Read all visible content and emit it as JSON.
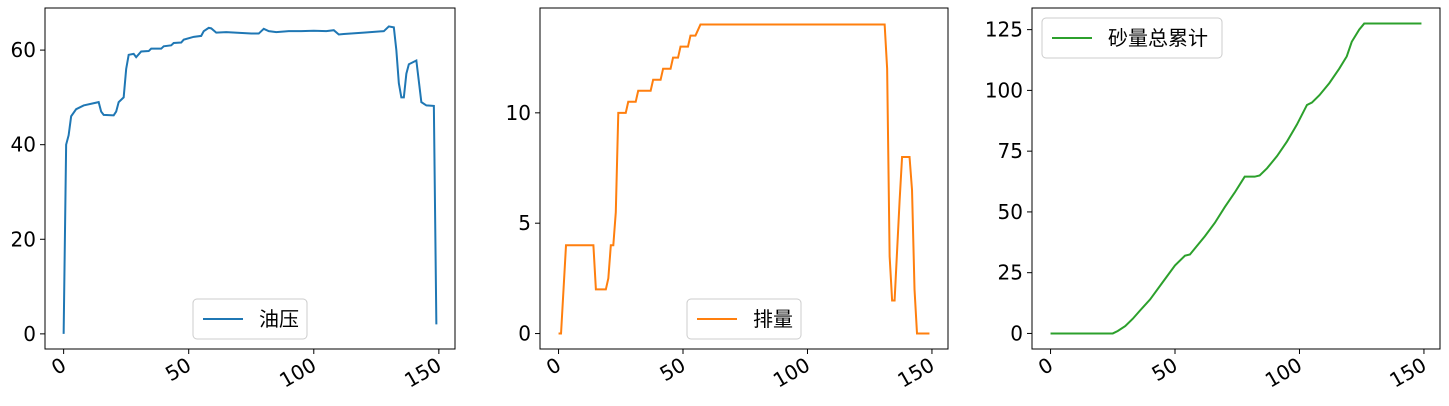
{
  "chart_data": [
    {
      "type": "line",
      "x": [
        0,
        1,
        2,
        3,
        5,
        8,
        14,
        15,
        16,
        20,
        21,
        22,
        24,
        25,
        26,
        28,
        29,
        31,
        34,
        35,
        39,
        40,
        43,
        44,
        47,
        48,
        52,
        55,
        56,
        58,
        59,
        61,
        65,
        75,
        78,
        80,
        82,
        85,
        90,
        95,
        100,
        105,
        108,
        110,
        112,
        120,
        128,
        130,
        132,
        133,
        134,
        135,
        136,
        137,
        138,
        141,
        143,
        145,
        148,
        149
      ],
      "series": [
        {
          "name": "油压",
          "color": "#1f77b4",
          "values": [
            0,
            40,
            42,
            46,
            47.5,
            48.3,
            49,
            47,
            46.3,
            46.2,
            47,
            49,
            50,
            56,
            59,
            59.2,
            58.5,
            59.7,
            59.8,
            60.3,
            60.3,
            60.8,
            61,
            61.5,
            61.6,
            62.2,
            62.8,
            63,
            64,
            64.7,
            64.6,
            63.7,
            63.8,
            63.5,
            63.5,
            64.5,
            64,
            63.8,
            64,
            64,
            64.1,
            64,
            64.2,
            63.3,
            63.4,
            63.7,
            64,
            65,
            64.8,
            60,
            53,
            50,
            50,
            55,
            57,
            57.8,
            49,
            48.3,
            48.2,
            2
          ]
        }
      ],
      "xlim": [
        -7.45,
        156.45
      ],
      "ylim": [
        -3.2,
        68.9
      ],
      "xticks": [
        0,
        50,
        100,
        150
      ],
      "yticks": [
        0,
        20,
        40,
        60
      ],
      "legend": "lower center"
    },
    {
      "type": "line",
      "x": [
        0,
        1,
        3,
        14,
        15,
        19,
        20,
        21,
        22,
        23,
        24,
        27,
        28,
        31,
        32,
        37,
        38,
        41,
        42,
        45,
        46,
        48,
        49,
        52,
        53,
        55,
        57,
        131,
        132,
        133,
        134,
        135,
        137,
        138,
        141,
        142,
        143,
        144,
        149
      ],
      "series": [
        {
          "name": "排量",
          "color": "#ff7f0e",
          "values": [
            0,
            0,
            4,
            4,
            2,
            2,
            2.5,
            4,
            4,
            5.5,
            10,
            10,
            10.5,
            10.5,
            11,
            11,
            11.5,
            11.5,
            12,
            12,
            12.5,
            12.5,
            13,
            13,
            13.5,
            13.5,
            14,
            14,
            12,
            3.5,
            1.5,
            1.5,
            6,
            8,
            8,
            6.5,
            2,
            0,
            0
          ]
        }
      ],
      "xlim": [
        -7.45,
        156.45
      ],
      "ylim": [
        -0.7,
        14.75
      ],
      "xticks": [
        0,
        50,
        100,
        150
      ],
      "yticks": [
        0,
        5,
        10
      ],
      "legend": "lower center"
    },
    {
      "type": "line",
      "x": [
        0,
        25,
        27,
        30,
        33,
        36,
        40,
        45,
        50,
        54,
        56,
        58,
        62,
        66,
        70,
        74,
        78,
        82,
        84,
        87,
        91,
        95,
        99,
        103,
        105,
        108,
        112,
        116,
        119,
        121,
        124,
        126,
        149
      ],
      "series": [
        {
          "name": "砂量总累计",
          "color": "#2ca02c",
          "values": [
            0,
            0,
            1,
            3,
            6,
            9.5,
            14,
            21,
            28,
            32,
            32.5,
            35,
            40,
            45.5,
            52,
            58,
            64.5,
            64.5,
            65,
            68,
            73,
            79,
            86,
            94,
            95,
            98,
            103,
            109,
            114,
            120,
            125,
            127.5,
            127.5
          ]
        }
      ],
      "xlim": [
        -7.45,
        156.45
      ],
      "ylim": [
        -6.4,
        133.9
      ],
      "xticks": [
        0,
        50,
        100,
        150
      ],
      "yticks": [
        0,
        25,
        50,
        75,
        100,
        125
      ],
      "legend": "upper left"
    }
  ]
}
